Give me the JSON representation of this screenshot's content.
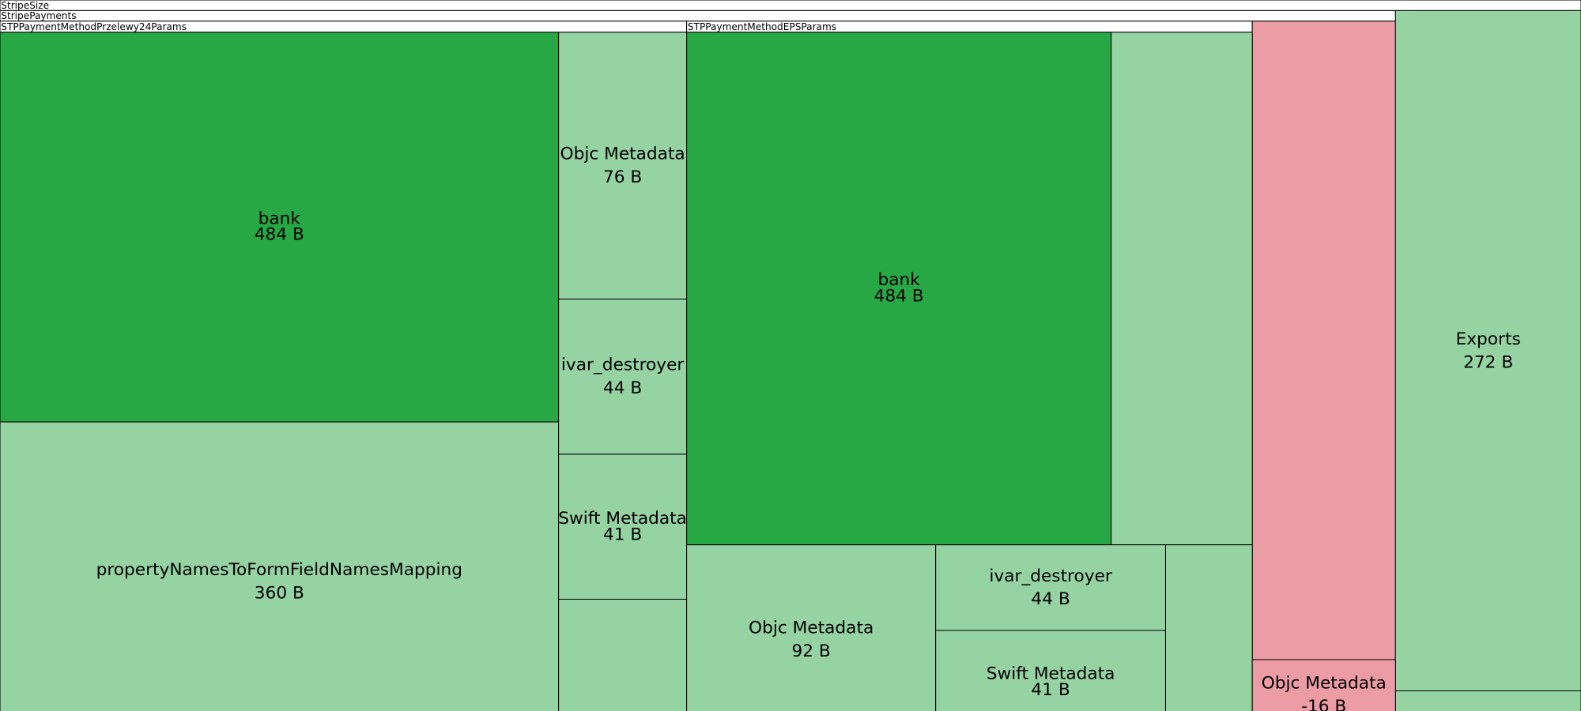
{
  "headers": [
    "StripeSize",
    "StripePayments",
    "STPPaymentMethodPrzelewy24Params",
    "STPPaymentMethodEPSParams"
  ],
  "nodes": [
    {
      "label": "bank",
      "size": "484 B"
    },
    {
      "label": "propertyNamesToFormFieldNamesMapping",
      "size": "360 B"
    },
    {
      "label": "Objc Metadata",
      "size": "76 B"
    },
    {
      "label": "ivar_destroyer",
      "size": "44 B"
    },
    {
      "label": "Swift Metadata",
      "size": "41 B"
    },
    {
      "label": "bank",
      "size": "484 B"
    },
    {
      "label": "Objc Metadata",
      "size": "92 B"
    },
    {
      "label": "ivar_destroyer",
      "size": "44 B"
    },
    {
      "label": "Swift Metadata",
      "size": "41 B"
    },
    {
      "label": "Objc Metadata",
      "size": "-16 B"
    },
    {
      "label": "Exports",
      "size": "272 B"
    }
  ]
}
